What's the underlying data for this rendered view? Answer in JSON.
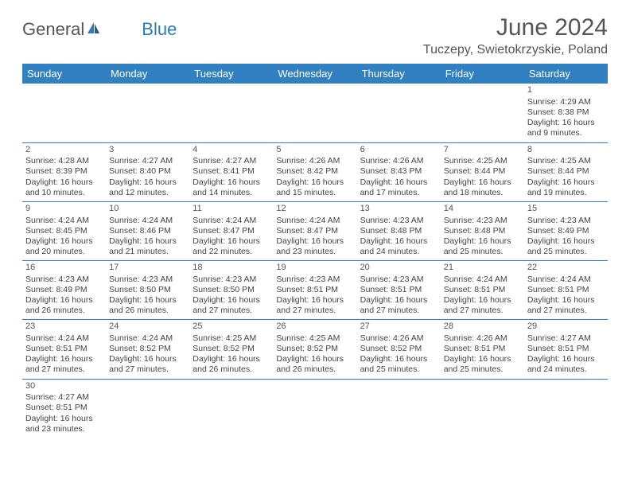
{
  "logo": {
    "general": "General",
    "blue": "Blue"
  },
  "title": "June 2024",
  "location": "Tuczepy, Swietokrzyskie, Poland",
  "colors": {
    "header_bg": "#3080c2",
    "header_text": "#ffffff",
    "border": "#3080c2",
    "body_text": "#444444",
    "title_text": "#555555",
    "logo_blue": "#2a7bbf"
  },
  "weekdays": [
    "Sunday",
    "Monday",
    "Tuesday",
    "Wednesday",
    "Thursday",
    "Friday",
    "Saturday"
  ],
  "weeks": [
    [
      null,
      null,
      null,
      null,
      null,
      null,
      {
        "n": "1",
        "sr": "Sunrise: 4:29 AM",
        "ss": "Sunset: 8:38 PM",
        "dl": "Daylight: 16 hours and 9 minutes."
      }
    ],
    [
      {
        "n": "2",
        "sr": "Sunrise: 4:28 AM",
        "ss": "Sunset: 8:39 PM",
        "dl": "Daylight: 16 hours and 10 minutes."
      },
      {
        "n": "3",
        "sr": "Sunrise: 4:27 AM",
        "ss": "Sunset: 8:40 PM",
        "dl": "Daylight: 16 hours and 12 minutes."
      },
      {
        "n": "4",
        "sr": "Sunrise: 4:27 AM",
        "ss": "Sunset: 8:41 PM",
        "dl": "Daylight: 16 hours and 14 minutes."
      },
      {
        "n": "5",
        "sr": "Sunrise: 4:26 AM",
        "ss": "Sunset: 8:42 PM",
        "dl": "Daylight: 16 hours and 15 minutes."
      },
      {
        "n": "6",
        "sr": "Sunrise: 4:26 AM",
        "ss": "Sunset: 8:43 PM",
        "dl": "Daylight: 16 hours and 17 minutes."
      },
      {
        "n": "7",
        "sr": "Sunrise: 4:25 AM",
        "ss": "Sunset: 8:44 PM",
        "dl": "Daylight: 16 hours and 18 minutes."
      },
      {
        "n": "8",
        "sr": "Sunrise: 4:25 AM",
        "ss": "Sunset: 8:44 PM",
        "dl": "Daylight: 16 hours and 19 minutes."
      }
    ],
    [
      {
        "n": "9",
        "sr": "Sunrise: 4:24 AM",
        "ss": "Sunset: 8:45 PM",
        "dl": "Daylight: 16 hours and 20 minutes."
      },
      {
        "n": "10",
        "sr": "Sunrise: 4:24 AM",
        "ss": "Sunset: 8:46 PM",
        "dl": "Daylight: 16 hours and 21 minutes."
      },
      {
        "n": "11",
        "sr": "Sunrise: 4:24 AM",
        "ss": "Sunset: 8:47 PM",
        "dl": "Daylight: 16 hours and 22 minutes."
      },
      {
        "n": "12",
        "sr": "Sunrise: 4:24 AM",
        "ss": "Sunset: 8:47 PM",
        "dl": "Daylight: 16 hours and 23 minutes."
      },
      {
        "n": "13",
        "sr": "Sunrise: 4:23 AM",
        "ss": "Sunset: 8:48 PM",
        "dl": "Daylight: 16 hours and 24 minutes."
      },
      {
        "n": "14",
        "sr": "Sunrise: 4:23 AM",
        "ss": "Sunset: 8:48 PM",
        "dl": "Daylight: 16 hours and 25 minutes."
      },
      {
        "n": "15",
        "sr": "Sunrise: 4:23 AM",
        "ss": "Sunset: 8:49 PM",
        "dl": "Daylight: 16 hours and 25 minutes."
      }
    ],
    [
      {
        "n": "16",
        "sr": "Sunrise: 4:23 AM",
        "ss": "Sunset: 8:49 PM",
        "dl": "Daylight: 16 hours and 26 minutes."
      },
      {
        "n": "17",
        "sr": "Sunrise: 4:23 AM",
        "ss": "Sunset: 8:50 PM",
        "dl": "Daylight: 16 hours and 26 minutes."
      },
      {
        "n": "18",
        "sr": "Sunrise: 4:23 AM",
        "ss": "Sunset: 8:50 PM",
        "dl": "Daylight: 16 hours and 27 minutes."
      },
      {
        "n": "19",
        "sr": "Sunrise: 4:23 AM",
        "ss": "Sunset: 8:51 PM",
        "dl": "Daylight: 16 hours and 27 minutes."
      },
      {
        "n": "20",
        "sr": "Sunrise: 4:23 AM",
        "ss": "Sunset: 8:51 PM",
        "dl": "Daylight: 16 hours and 27 minutes."
      },
      {
        "n": "21",
        "sr": "Sunrise: 4:24 AM",
        "ss": "Sunset: 8:51 PM",
        "dl": "Daylight: 16 hours and 27 minutes."
      },
      {
        "n": "22",
        "sr": "Sunrise: 4:24 AM",
        "ss": "Sunset: 8:51 PM",
        "dl": "Daylight: 16 hours and 27 minutes."
      }
    ],
    [
      {
        "n": "23",
        "sr": "Sunrise: 4:24 AM",
        "ss": "Sunset: 8:51 PM",
        "dl": "Daylight: 16 hours and 27 minutes."
      },
      {
        "n": "24",
        "sr": "Sunrise: 4:24 AM",
        "ss": "Sunset: 8:52 PM",
        "dl": "Daylight: 16 hours and 27 minutes."
      },
      {
        "n": "25",
        "sr": "Sunrise: 4:25 AM",
        "ss": "Sunset: 8:52 PM",
        "dl": "Daylight: 16 hours and 26 minutes."
      },
      {
        "n": "26",
        "sr": "Sunrise: 4:25 AM",
        "ss": "Sunset: 8:52 PM",
        "dl": "Daylight: 16 hours and 26 minutes."
      },
      {
        "n": "27",
        "sr": "Sunrise: 4:26 AM",
        "ss": "Sunset: 8:52 PM",
        "dl": "Daylight: 16 hours and 25 minutes."
      },
      {
        "n": "28",
        "sr": "Sunrise: 4:26 AM",
        "ss": "Sunset: 8:51 PM",
        "dl": "Daylight: 16 hours and 25 minutes."
      },
      {
        "n": "29",
        "sr": "Sunrise: 4:27 AM",
        "ss": "Sunset: 8:51 PM",
        "dl": "Daylight: 16 hours and 24 minutes."
      }
    ],
    [
      {
        "n": "30",
        "sr": "Sunrise: 4:27 AM",
        "ss": "Sunset: 8:51 PM",
        "dl": "Daylight: 16 hours and 23 minutes."
      },
      null,
      null,
      null,
      null,
      null,
      null
    ]
  ]
}
